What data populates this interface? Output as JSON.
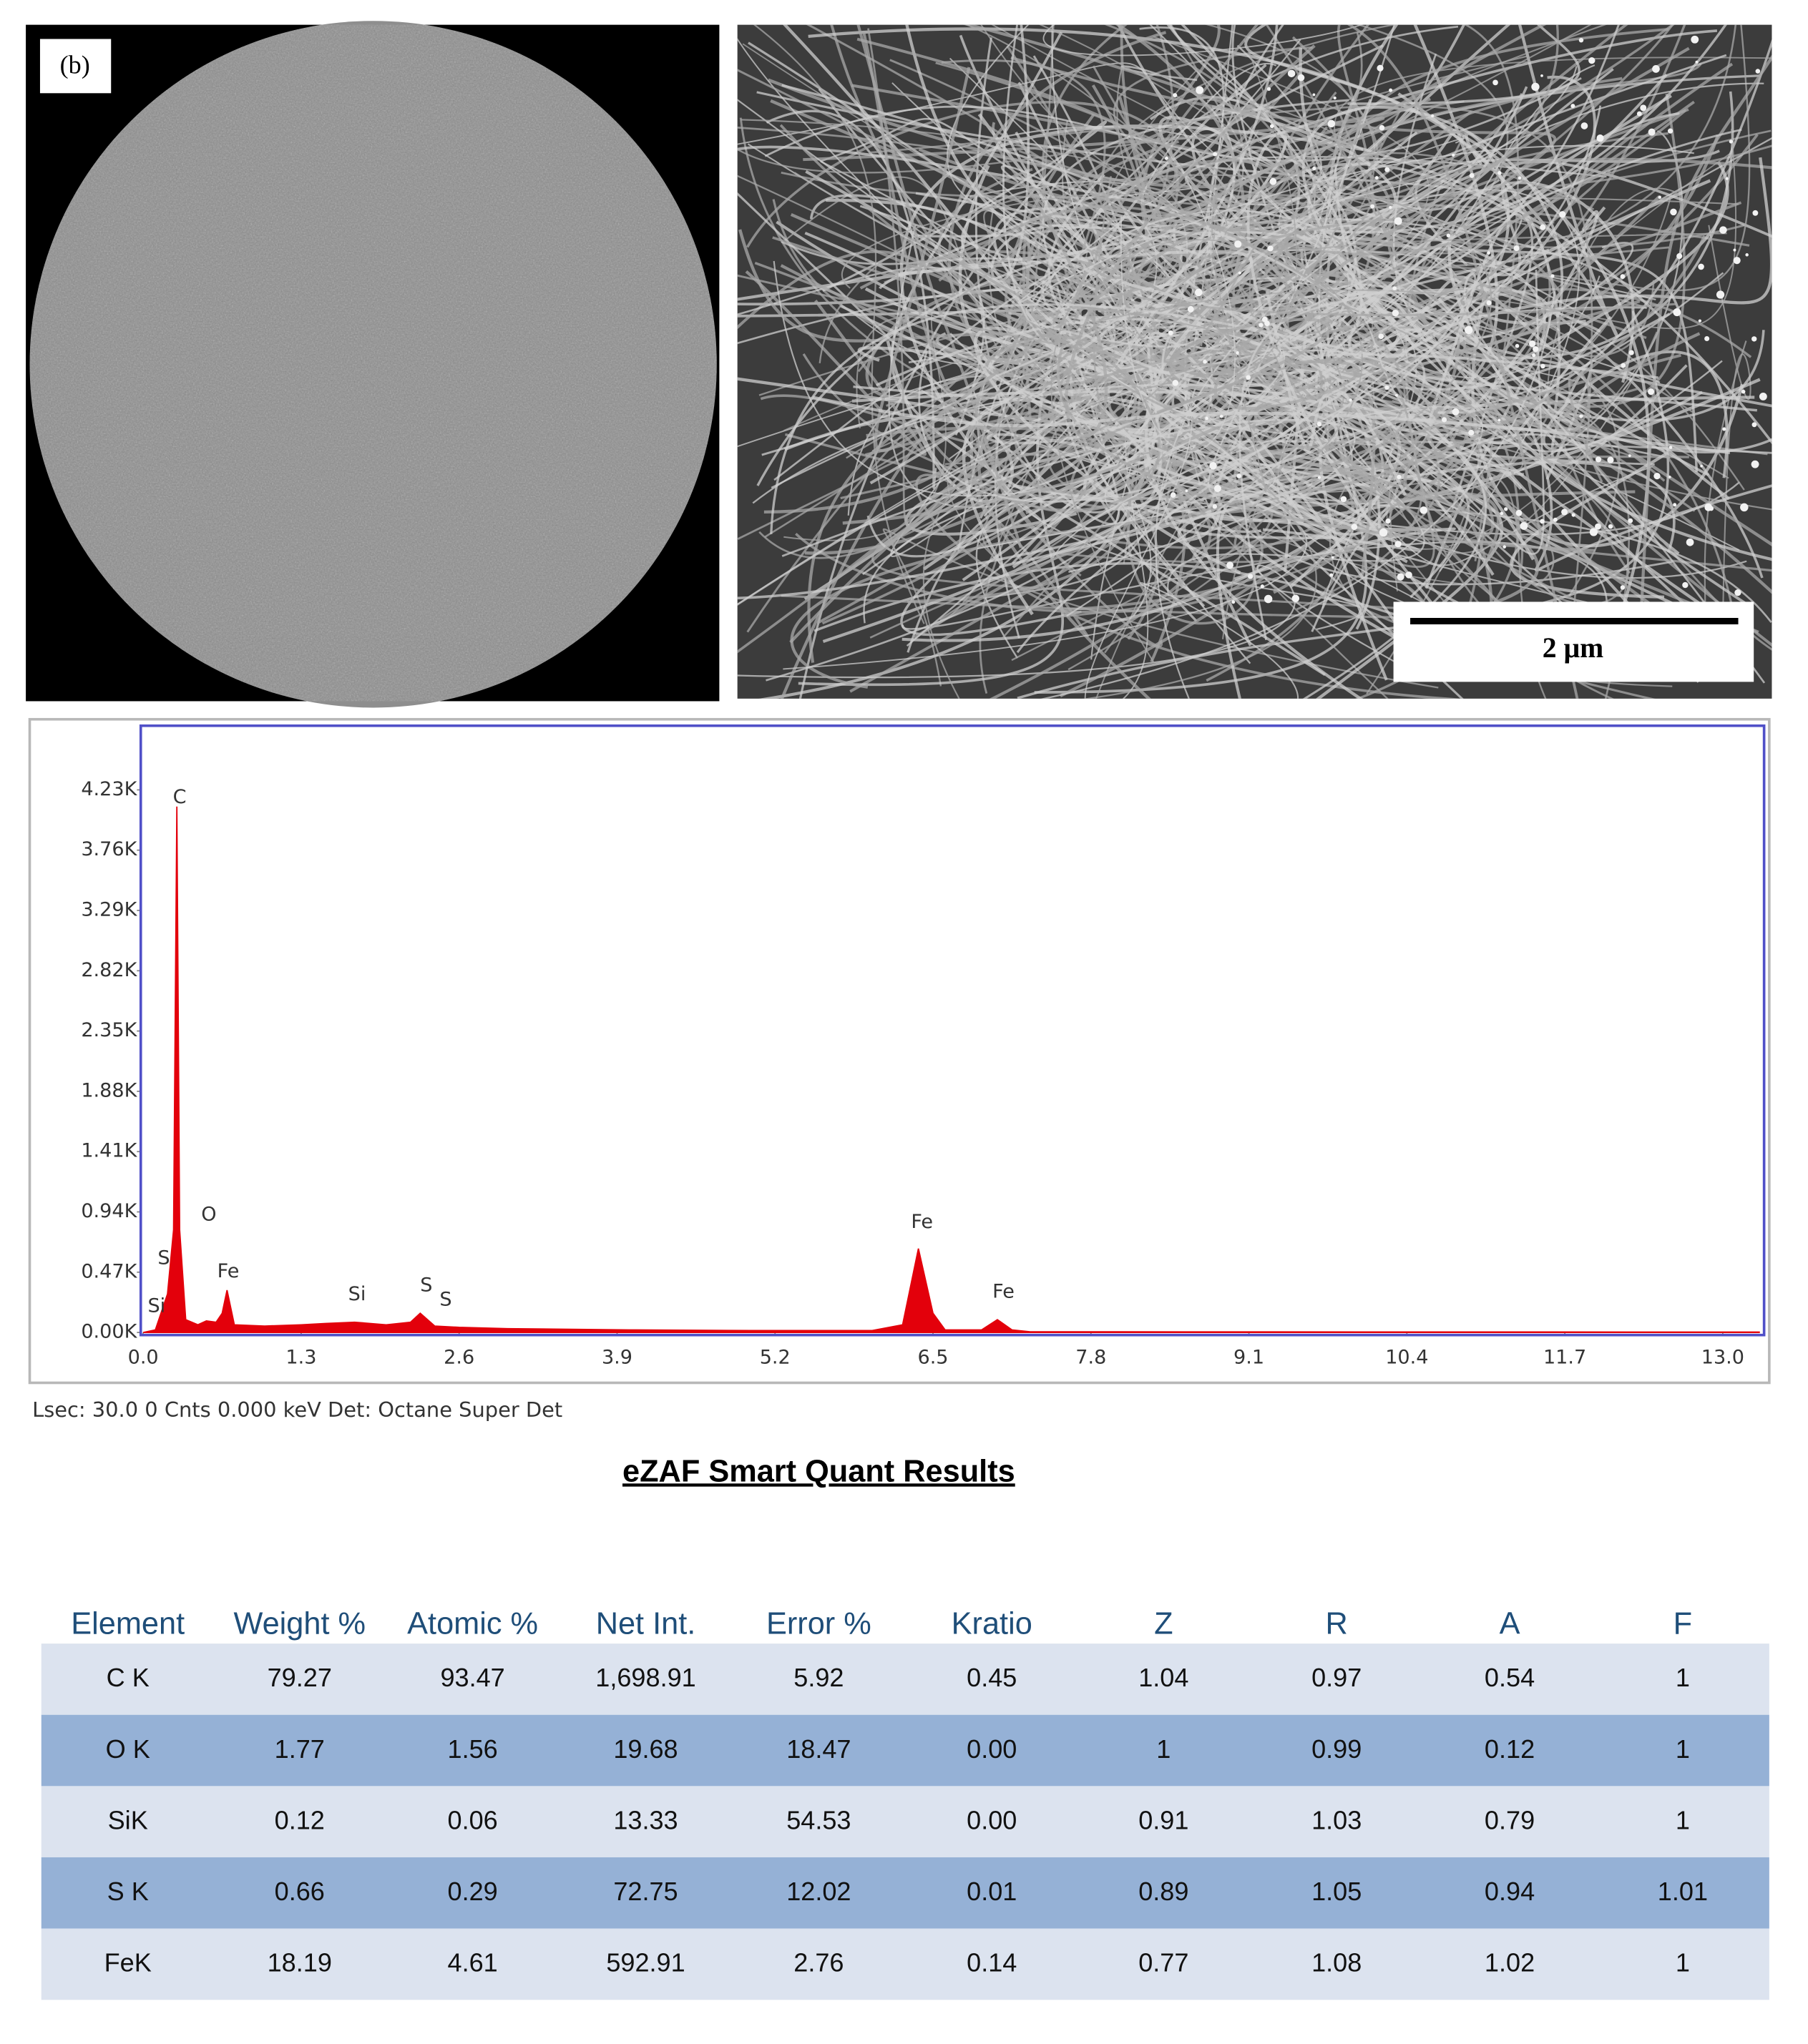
{
  "images": {
    "left_label": "(b)",
    "scale_bar": "2 μm"
  },
  "chart_data": {
    "type": "area",
    "x": [
      0.0,
      0.1,
      0.2,
      0.25,
      0.277,
      0.3,
      0.35,
      0.45,
      0.52,
      0.6,
      0.65,
      0.69,
      0.75,
      1.0,
      1.3,
      1.5,
      1.74,
      2.0,
      2.2,
      2.28,
      2.4,
      2.6,
      3.0,
      4.0,
      5.0,
      6.0,
      6.25,
      6.38,
      6.5,
      6.6,
      6.9,
      7.03,
      7.15,
      7.3,
      8.0,
      13.3
    ],
    "values": [
      0,
      20,
      300,
      800,
      4100,
      800,
      100,
      60,
      90,
      80,
      150,
      330,
      60,
      50,
      60,
      70,
      80,
      60,
      80,
      150,
      50,
      40,
      30,
      20,
      15,
      15,
      60,
      654,
      150,
      20,
      20,
      100,
      20,
      5,
      5,
      3
    ],
    "color": "#e3000b",
    "xlim": [
      -0.02,
      13.34
    ],
    "ylim": [
      0,
      4730
    ],
    "xticks": [
      {
        "value": 0,
        "label": "0.0"
      },
      1.3,
      2.6,
      3.9,
      5.2,
      6.5,
      7.8,
      9.1,
      10.4,
      11.7,
      {
        "value": 13,
        "label": "13.0"
      }
    ],
    "yticks": [
      {
        "value": 0,
        "label": "0.00K"
      },
      {
        "value": 470,
        "label": "0.47K"
      },
      {
        "value": 940,
        "label": "0.94K"
      },
      {
        "value": 1410,
        "label": "1.41K"
      },
      {
        "value": 1880,
        "label": "1.88K"
      },
      {
        "value": 2350,
        "label": "2.35K"
      },
      {
        "value": 2820,
        "label": "2.82K"
      },
      {
        "value": 3290,
        "label": "3.29K"
      },
      {
        "value": 3760,
        "label": "3.76K"
      },
      {
        "value": 4230,
        "label": "4.23K"
      }
    ],
    "annotations": [
      {
        "text": "C",
        "x": 0.3,
        "y": 4167
      },
      {
        "text": "O",
        "x": 0.54,
        "y": 916
      },
      {
        "text": "Fe",
        "x": 0.7,
        "y": 473
      },
      {
        "text": "Fe",
        "x": 6.41,
        "y": 856
      },
      {
        "text": "Fe",
        "x": 7.08,
        "y": 312
      },
      {
        "text": "Si",
        "x": 1.76,
        "y": 292
      },
      {
        "text": "S",
        "x": 2.33,
        "y": 362
      },
      {
        "text": "S",
        "x": 2.49,
        "y": 252
      },
      {
        "text": "S",
        "x": 0.17,
        "y": 574
      },
      {
        "text": "Si",
        "x": 0.11,
        "y": 201
      }
    ]
  },
  "spectrum_footer": "Lsec: 30.0 0 Cnts  0.000 keV Det: Octane Super Det",
  "table_title": "eZAF Smart Quant Results",
  "table": {
    "header": [
      "Element",
      "Weight %",
      "Atomic %",
      "Net Int.",
      "Error %",
      "Kratio",
      "Z",
      "R",
      "A",
      "F"
    ],
    "rows": [
      [
        "C K",
        "79.27",
        "93.47",
        "1,698.91",
        "5.92",
        "0.45",
        "1.04",
        "0.97",
        "0.54",
        "1"
      ],
      [
        "O K",
        "1.77",
        "1.56",
        "19.68",
        "18.47",
        "0.00",
        "1",
        "0.99",
        "0.12",
        "1"
      ],
      [
        "SiK",
        "0.12",
        "0.06",
        "13.33",
        "54.53",
        "0.00",
        "0.91",
        "1.03",
        "0.79",
        "1"
      ],
      [
        "S K",
        "0.66",
        "0.29",
        "72.75",
        "12.02",
        "0.01",
        "0.89",
        "1.05",
        "0.94",
        "1.01"
      ],
      [
        "FeK",
        "18.19",
        "4.61",
        "592.91",
        "2.76",
        "0.14",
        "0.77",
        "1.08",
        "1.02",
        "1"
      ]
    ]
  }
}
